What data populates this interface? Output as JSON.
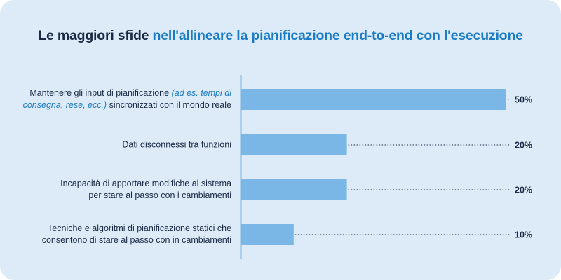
{
  "title": {
    "part1": "Le maggiori sfide",
    "part2": "nell'allineare la pianificazione end-to-end con l'esecuzione"
  },
  "colors": {
    "bar": "#7bb7e6",
    "accent": "#1b7bc4",
    "text": "#1a2a45",
    "background": "#dcebf7"
  },
  "chart_data": {
    "type": "bar",
    "orientation": "horizontal",
    "categories": [
      {
        "line1_before": "Mantenere gli input di pianificazione ",
        "line1_italic": "(ad es. tempi di",
        "line2_italic": "consegna, rese, ecc.)",
        "line2_after": " sincronizzati con il mondo reale"
      },
      {
        "line1": "Dati disconnessi tra funzioni"
      },
      {
        "line1": "Incapacità di apportare modifiche al sistema",
        "line2": "per stare al passo con i cambiamenti"
      },
      {
        "line1": "Tecniche e algoritmi di pianificazione statici che",
        "line2": "consentono di stare al passo con in cambiamenti"
      }
    ],
    "values": [
      50,
      20,
      20,
      10
    ],
    "value_labels": [
      "50%",
      "20%",
      "20%",
      "10%"
    ],
    "xlim": [
      0,
      50
    ],
    "grid": false,
    "legend": "none"
  }
}
